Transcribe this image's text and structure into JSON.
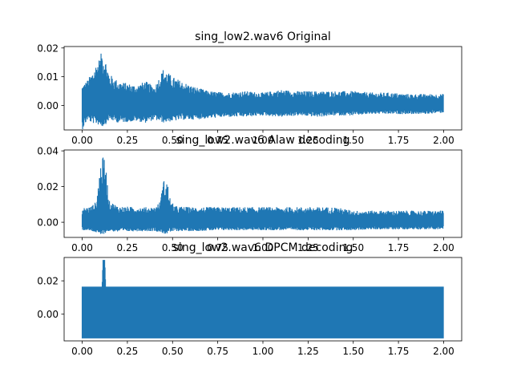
{
  "chart_data": [
    {
      "type": "line",
      "title": "sing_low2.wav6 Original",
      "xlabel": "",
      "ylabel": "",
      "xlim": [
        -0.1,
        2.1
      ],
      "ylim": [
        -0.0085,
        0.0205
      ],
      "xticks": [
        "0.00",
        "0.25",
        "0.50",
        "0.75",
        "1.00",
        "1.25",
        "1.50",
        "1.75",
        "2.00"
      ],
      "xtick_values": [
        0,
        0.25,
        0.5,
        0.75,
        1.0,
        1.25,
        1.5,
        1.75,
        2.0
      ],
      "yticks": [
        "0.00",
        "0.01",
        "0.02"
      ],
      "ytick_values": [
        0,
        0.01,
        0.02
      ],
      "grid": false,
      "color": "#1f77b4",
      "envelope": {
        "x": [
          0.0,
          0.03,
          0.05,
          0.08,
          0.1,
          0.11,
          0.13,
          0.15,
          0.2,
          0.3,
          0.35,
          0.4,
          0.45,
          0.5,
          0.55,
          0.6,
          0.7,
          0.8,
          0.9,
          1.0,
          1.1,
          1.2,
          1.3,
          1.4,
          1.5,
          1.6,
          1.7,
          1.8,
          1.9,
          2.0
        ],
        "upper": [
          0.007,
          0.009,
          0.011,
          0.015,
          0.017,
          0.0195,
          0.016,
          0.011,
          0.0085,
          0.007,
          0.0085,
          0.0065,
          0.013,
          0.01,
          0.0085,
          0.007,
          0.005,
          0.0045,
          0.005,
          0.0045,
          0.0055,
          0.005,
          0.005,
          0.005,
          0.005,
          0.0045,
          0.0045,
          0.004,
          0.004,
          0.004
        ],
        "lower": [
          -0.0085,
          -0.005,
          -0.006,
          -0.0065,
          -0.007,
          -0.0075,
          -0.0065,
          -0.005,
          -0.006,
          -0.0055,
          -0.006,
          -0.005,
          -0.006,
          -0.0055,
          -0.005,
          -0.005,
          -0.0045,
          -0.004,
          -0.004,
          -0.0035,
          -0.004,
          -0.0035,
          -0.004,
          -0.0035,
          -0.0035,
          -0.003,
          -0.003,
          -0.003,
          -0.003,
          -0.0025
        ]
      }
    },
    {
      "type": "line",
      "title": "sing_low2.wav6 Alaw decoding",
      "xlabel": "",
      "ylabel": "",
      "xlim": [
        -0.1,
        2.1
      ],
      "ylim": [
        -0.0085,
        0.0405
      ],
      "xticks": [
        "0.00",
        "0.25",
        "0.50",
        "0.75",
        "1.00",
        "1.25",
        "1.50",
        "1.75",
        "2.00"
      ],
      "xtick_values": [
        0,
        0.25,
        0.5,
        0.75,
        1.0,
        1.25,
        1.5,
        1.75,
        2.0
      ],
      "yticks": [
        "0.00",
        "0.02",
        "0.04"
      ],
      "ytick_values": [
        0,
        0.02,
        0.04
      ],
      "grid": false,
      "color": "#1f77b4",
      "envelope": {
        "x": [
          0.0,
          0.05,
          0.08,
          0.09,
          0.1,
          0.12,
          0.13,
          0.15,
          0.2,
          0.3,
          0.4,
          0.43,
          0.45,
          0.47,
          0.49,
          0.52,
          0.6,
          0.8,
          1.0,
          1.2,
          1.4,
          1.5,
          1.6,
          1.8,
          2.0
        ],
        "upper": [
          0.008,
          0.009,
          0.012,
          0.0235,
          0.032,
          0.038,
          0.032,
          0.012,
          0.009,
          0.0085,
          0.0085,
          0.0115,
          0.0235,
          0.0235,
          0.0115,
          0.009,
          0.0085,
          0.0085,
          0.0085,
          0.0085,
          0.0085,
          0.0065,
          0.0065,
          0.0065,
          0.0065
        ],
        "lower": [
          -0.0045,
          -0.005,
          -0.006,
          -0.007,
          -0.0075,
          -0.0065,
          -0.006,
          -0.005,
          -0.0055,
          -0.005,
          -0.005,
          -0.0055,
          -0.0065,
          -0.0065,
          -0.0055,
          -0.005,
          -0.005,
          -0.0045,
          -0.0045,
          -0.0045,
          -0.0045,
          -0.0045,
          -0.004,
          -0.004,
          -0.004
        ]
      }
    },
    {
      "type": "line",
      "title": "sing_low2.wav6 DPCM decoding",
      "xlabel": "",
      "ylabel": "",
      "xlim": [
        -0.1,
        2.1
      ],
      "ylim": [
        -0.016,
        0.034
      ],
      "xticks": [
        "0.00",
        "0.25",
        "0.50",
        "0.75",
        "1.00",
        "1.25",
        "1.50",
        "1.75",
        "2.00"
      ],
      "xtick_values": [
        0,
        0.25,
        0.5,
        0.75,
        1.0,
        1.25,
        1.5,
        1.75,
        2.0
      ],
      "yticks": [
        "0.00",
        "0.02"
      ],
      "ytick_values": [
        0,
        0.02
      ],
      "grid": false,
      "color": "#1f77b4",
      "envelope": {
        "x": [
          0.0,
          0.11,
          0.115,
          0.125,
          0.13,
          2.0
        ],
        "upper": [
          0.0165,
          0.0165,
          0.0325,
          0.0325,
          0.0165,
          0.0165
        ],
        "lower": [
          -0.0145,
          -0.0145,
          -0.0145,
          -0.0145,
          -0.0145,
          -0.0145
        ]
      }
    }
  ]
}
